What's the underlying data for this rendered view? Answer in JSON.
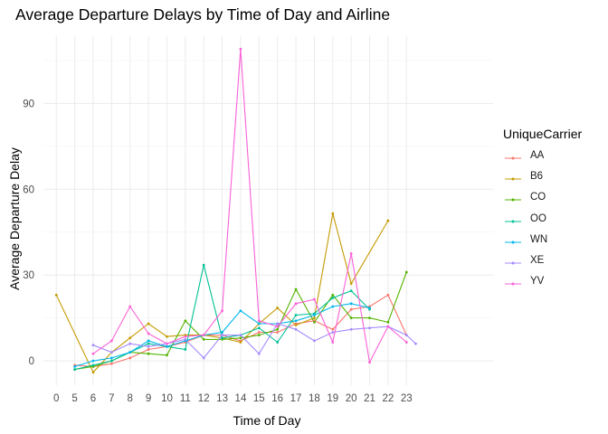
{
  "title": "Average Departure Delays by Time of Day and Airline",
  "chart_data": {
    "type": "line",
    "title": "Average Departure Delays by Time of Day and Airline",
    "xlabel": "Time of Day",
    "ylabel": "Average Departure Delay",
    "xlim": [
      -0.7,
      23.7
    ],
    "ylim": [
      -8.5,
      113.5
    ],
    "x_ticks": [
      0,
      5,
      6,
      7,
      8,
      9,
      10,
      11,
      12,
      13,
      14,
      15,
      16,
      17,
      18,
      19,
      20,
      21,
      22,
      23
    ],
    "y_ticks": [
      0,
      30,
      60,
      90
    ],
    "grid": true,
    "legend": {
      "title": "UniqueCarrier",
      "placement": "right"
    },
    "series": [
      {
        "name": "AA",
        "color": "#F8766D",
        "points": [
          [
            5,
            -1.5
          ],
          [
            6,
            -2
          ],
          [
            7,
            -1
          ],
          [
            8,
            1
          ],
          [
            9,
            4
          ],
          [
            10,
            5
          ],
          [
            11,
            6.5
          ],
          [
            12,
            9
          ],
          [
            13,
            9
          ],
          [
            14,
            7
          ],
          [
            15,
            10
          ],
          [
            16,
            10
          ],
          [
            17,
            13
          ],
          [
            18,
            14
          ],
          [
            19,
            11
          ],
          [
            20,
            18
          ],
          [
            21,
            19
          ],
          [
            22,
            23
          ],
          [
            23,
            9
          ]
        ]
      },
      {
        "name": "B6",
        "color": "#C49A00",
        "points": [
          [
            0,
            23
          ],
          [
            6,
            -4
          ],
          [
            7,
            3
          ],
          [
            8,
            8
          ],
          [
            9,
            13
          ],
          [
            10,
            8.5
          ],
          [
            11,
            9
          ],
          [
            12,
            9
          ],
          [
            13,
            8
          ],
          [
            14,
            6.5
          ],
          [
            15,
            13
          ],
          [
            16,
            18.5
          ],
          [
            17,
            12.5
          ],
          [
            18,
            15
          ],
          [
            19,
            51.5
          ],
          [
            20,
            27
          ],
          [
            22,
            49
          ]
        ]
      },
      {
        "name": "CO",
        "color": "#53B400",
        "points": [
          [
            5,
            -3
          ],
          [
            6,
            -2
          ],
          [
            7,
            0
          ],
          [
            8,
            3
          ],
          [
            9,
            2.5
          ],
          [
            10,
            2
          ],
          [
            11,
            14
          ],
          [
            12,
            7.5
          ],
          [
            13,
            7.5
          ],
          [
            14,
            8
          ],
          [
            15,
            9
          ],
          [
            16,
            11
          ],
          [
            17,
            25
          ],
          [
            18,
            13.5
          ],
          [
            19,
            23
          ],
          [
            20,
            15
          ],
          [
            21,
            15
          ],
          [
            22,
            13.5
          ],
          [
            23,
            31
          ]
        ]
      },
      {
        "name": "OO",
        "color": "#00C094",
        "points": [
          [
            5,
            -3
          ],
          [
            6,
            -1.5
          ],
          [
            7,
            0
          ],
          [
            8,
            3
          ],
          [
            9,
            6
          ],
          [
            10,
            5
          ],
          [
            11,
            4
          ],
          [
            12,
            33.5
          ],
          [
            13,
            8
          ],
          [
            14,
            9
          ],
          [
            15,
            11.5
          ],
          [
            16,
            6.5
          ],
          [
            17,
            16
          ],
          [
            18,
            16.5
          ],
          [
            19,
            22
          ],
          [
            20,
            24.5
          ],
          [
            21,
            18
          ]
        ]
      },
      {
        "name": "WN",
        "color": "#00B6EB",
        "points": [
          [
            5,
            -2
          ],
          [
            6,
            0
          ],
          [
            7,
            1
          ],
          [
            8,
            3
          ],
          [
            9,
            7
          ],
          [
            10,
            5
          ],
          [
            11,
            7
          ],
          [
            12,
            9
          ],
          [
            13,
            10
          ],
          [
            14,
            17.5
          ],
          [
            15,
            13
          ],
          [
            16,
            13
          ],
          [
            17,
            14
          ],
          [
            18,
            16
          ],
          [
            19,
            19
          ],
          [
            20,
            20
          ],
          [
            21,
            18.5
          ]
        ]
      },
      {
        "name": "XE",
        "color": "#A58AFF",
        "points": [
          [
            6,
            5.5
          ],
          [
            7,
            3
          ],
          [
            8,
            6
          ],
          [
            9,
            5
          ],
          [
            10,
            6
          ],
          [
            11,
            7.5
          ],
          [
            12,
            1
          ],
          [
            13,
            9
          ],
          [
            14,
            9
          ],
          [
            15,
            2.5
          ],
          [
            16,
            13
          ],
          [
            17,
            11
          ],
          [
            18,
            7
          ],
          [
            19,
            10
          ],
          [
            20,
            11
          ],
          [
            21,
            11.5
          ],
          [
            22,
            12
          ],
          [
            23,
            9
          ],
          [
            24,
            6
          ]
        ]
      },
      {
        "name": "YV",
        "color": "#FB61D7",
        "points": [
          [
            6,
            2.5
          ],
          [
            7,
            7
          ],
          [
            8,
            19
          ],
          [
            9,
            9.5
          ],
          [
            10,
            6
          ],
          [
            11,
            8.5
          ],
          [
            12,
            9
          ],
          [
            13,
            17.5
          ],
          [
            14,
            109
          ],
          [
            15,
            14
          ],
          [
            16,
            12
          ],
          [
            17,
            20
          ],
          [
            18,
            21.5
          ],
          [
            19,
            6.5
          ],
          [
            20,
            37.5
          ],
          [
            21,
            -0.5
          ],
          [
            22,
            12
          ],
          [
            23,
            6.5
          ]
        ]
      }
    ]
  }
}
